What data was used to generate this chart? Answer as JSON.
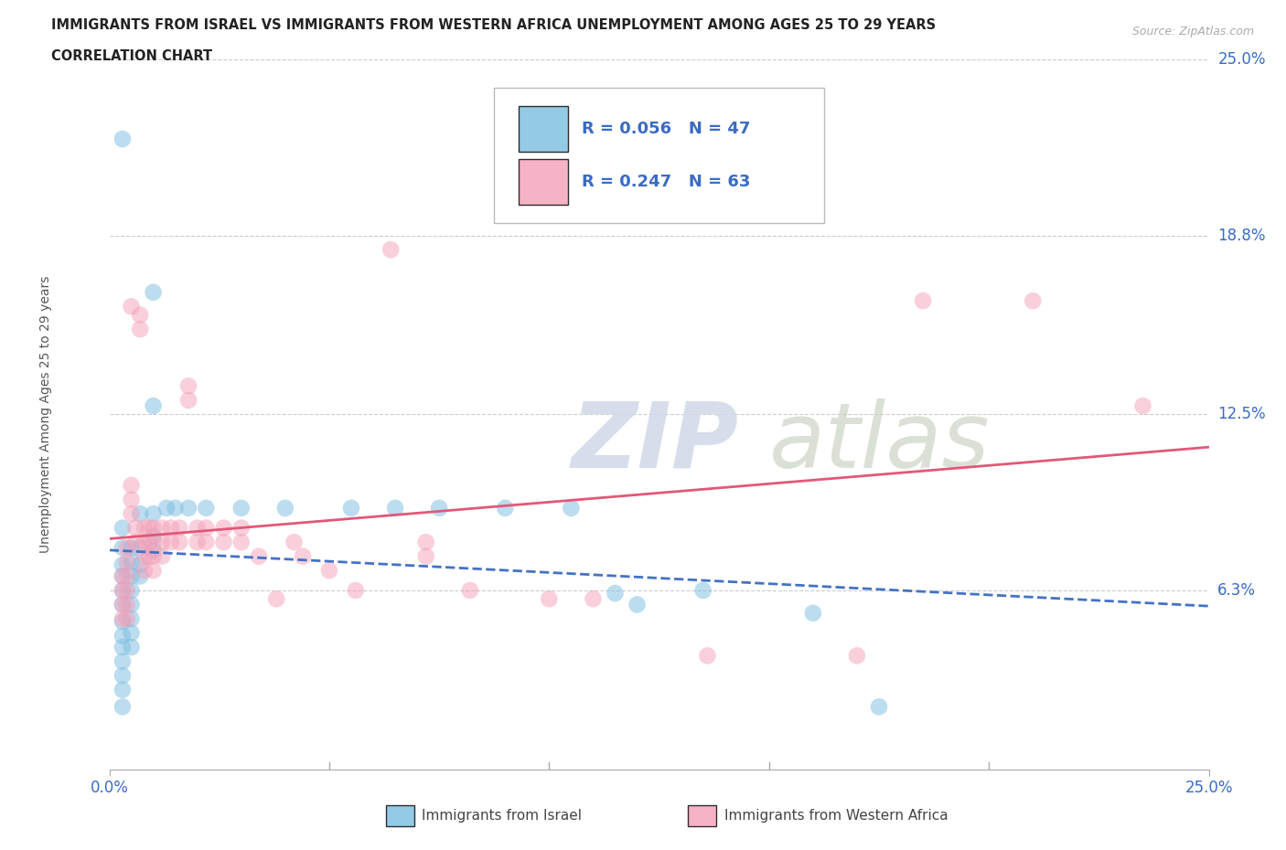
{
  "title_line1": "IMMIGRANTS FROM ISRAEL VS IMMIGRANTS FROM WESTERN AFRICA UNEMPLOYMENT AMONG AGES 25 TO 29 YEARS",
  "title_line2": "CORRELATION CHART",
  "source": "Source: ZipAtlas.com",
  "ylabel": "Unemployment Among Ages 25 to 29 years",
  "xlim": [
    0.0,
    0.25
  ],
  "ylim": [
    0.0,
    0.25
  ],
  "color_israel": "#7bbde0",
  "color_west_africa": "#f4a0b8",
  "trendline_israel_color": "#4472c4",
  "trendline_west_africa_color": "#e05878",
  "legend_R_israel": "R = 0.056",
  "legend_N_israel": "N = 47",
  "legend_R_west_africa": "R = 0.247",
  "legend_N_west_africa": "N = 63",
  "ytick_positions": [
    0.063,
    0.125,
    0.188,
    0.25
  ],
  "ytick_labels": [
    "6.3%",
    "12.5%",
    "18.8%",
    "25.0%"
  ],
  "israel_points": [
    [
      0.003,
      0.222
    ],
    [
      0.003,
      0.085
    ],
    [
      0.003,
      0.078
    ],
    [
      0.003,
      0.072
    ],
    [
      0.003,
      0.068
    ],
    [
      0.003,
      0.063
    ],
    [
      0.003,
      0.058
    ],
    [
      0.003,
      0.052
    ],
    [
      0.003,
      0.047
    ],
    [
      0.003,
      0.043
    ],
    [
      0.003,
      0.038
    ],
    [
      0.003,
      0.033
    ],
    [
      0.003,
      0.028
    ],
    [
      0.003,
      0.022
    ],
    [
      0.005,
      0.078
    ],
    [
      0.005,
      0.073
    ],
    [
      0.005,
      0.068
    ],
    [
      0.005,
      0.063
    ],
    [
      0.005,
      0.058
    ],
    [
      0.005,
      0.053
    ],
    [
      0.005,
      0.048
    ],
    [
      0.005,
      0.043
    ],
    [
      0.007,
      0.09
    ],
    [
      0.007,
      0.078
    ],
    [
      0.007,
      0.072
    ],
    [
      0.007,
      0.068
    ],
    [
      0.01,
      0.168
    ],
    [
      0.01,
      0.128
    ],
    [
      0.01,
      0.09
    ],
    [
      0.01,
      0.082
    ],
    [
      0.01,
      0.077
    ],
    [
      0.013,
      0.092
    ],
    [
      0.015,
      0.092
    ],
    [
      0.018,
      0.092
    ],
    [
      0.022,
      0.092
    ],
    [
      0.03,
      0.092
    ],
    [
      0.04,
      0.092
    ],
    [
      0.055,
      0.092
    ],
    [
      0.065,
      0.092
    ],
    [
      0.075,
      0.092
    ],
    [
      0.09,
      0.092
    ],
    [
      0.105,
      0.092
    ],
    [
      0.115,
      0.062
    ],
    [
      0.12,
      0.058
    ],
    [
      0.135,
      0.063
    ],
    [
      0.16,
      0.055
    ],
    [
      0.175,
      0.022
    ]
  ],
  "wa_points": [
    [
      0.003,
      0.068
    ],
    [
      0.003,
      0.063
    ],
    [
      0.003,
      0.058
    ],
    [
      0.003,
      0.053
    ],
    [
      0.004,
      0.078
    ],
    [
      0.004,
      0.073
    ],
    [
      0.004,
      0.068
    ],
    [
      0.004,
      0.063
    ],
    [
      0.004,
      0.058
    ],
    [
      0.004,
      0.053
    ],
    [
      0.005,
      0.1
    ],
    [
      0.005,
      0.095
    ],
    [
      0.005,
      0.09
    ],
    [
      0.005,
      0.163
    ],
    [
      0.006,
      0.085
    ],
    [
      0.006,
      0.08
    ],
    [
      0.007,
      0.16
    ],
    [
      0.007,
      0.155
    ],
    [
      0.008,
      0.085
    ],
    [
      0.008,
      0.08
    ],
    [
      0.008,
      0.075
    ],
    [
      0.008,
      0.07
    ],
    [
      0.009,
      0.085
    ],
    [
      0.009,
      0.08
    ],
    [
      0.009,
      0.075
    ],
    [
      0.01,
      0.085
    ],
    [
      0.01,
      0.08
    ],
    [
      0.01,
      0.075
    ],
    [
      0.01,
      0.07
    ],
    [
      0.012,
      0.085
    ],
    [
      0.012,
      0.08
    ],
    [
      0.012,
      0.075
    ],
    [
      0.014,
      0.085
    ],
    [
      0.014,
      0.08
    ],
    [
      0.016,
      0.085
    ],
    [
      0.016,
      0.08
    ],
    [
      0.018,
      0.135
    ],
    [
      0.018,
      0.13
    ],
    [
      0.02,
      0.085
    ],
    [
      0.02,
      0.08
    ],
    [
      0.022,
      0.085
    ],
    [
      0.022,
      0.08
    ],
    [
      0.026,
      0.085
    ],
    [
      0.026,
      0.08
    ],
    [
      0.03,
      0.085
    ],
    [
      0.03,
      0.08
    ],
    [
      0.034,
      0.075
    ],
    [
      0.038,
      0.06
    ],
    [
      0.042,
      0.08
    ],
    [
      0.044,
      0.075
    ],
    [
      0.05,
      0.07
    ],
    [
      0.056,
      0.063
    ],
    [
      0.064,
      0.183
    ],
    [
      0.072,
      0.08
    ],
    [
      0.072,
      0.075
    ],
    [
      0.082,
      0.063
    ],
    [
      0.1,
      0.06
    ],
    [
      0.11,
      0.06
    ],
    [
      0.136,
      0.04
    ],
    [
      0.17,
      0.04
    ],
    [
      0.185,
      0.165
    ],
    [
      0.21,
      0.165
    ],
    [
      0.235,
      0.128
    ]
  ]
}
